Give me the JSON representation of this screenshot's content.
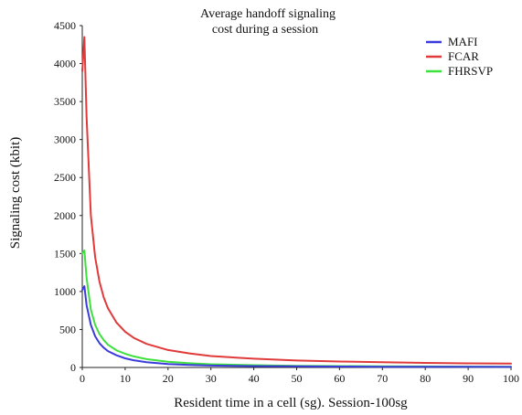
{
  "chart_data": {
    "type": "line",
    "title": [
      "Average handoff signaling",
      "cost during a session"
    ],
    "xlabel": "Resident time in a cell (sg). Session-100sg",
    "ylabel": "Signaling cost (kbit)",
    "xlim": [
      0,
      100
    ],
    "ylim": [
      0,
      4500
    ],
    "xticks": [
      0,
      10,
      20,
      30,
      40,
      50,
      60,
      70,
      80,
      90,
      100
    ],
    "yticks": [
      0,
      500,
      1000,
      1500,
      2000,
      2500,
      3000,
      3500,
      4000,
      4500
    ],
    "xtick_labels": [
      "0",
      "10",
      "20",
      "30",
      "40",
      "50",
      "60",
      "70",
      "80",
      "90",
      "100"
    ],
    "ytick_labels": [
      "0",
      "500",
      "1000",
      "1500",
      "2000",
      "2500",
      "3000",
      "3500",
      "4000",
      "4500"
    ],
    "grid": false,
    "legend_position": "top-right",
    "series": [
      {
        "name": "MAFI",
        "color": "#3b3bdc",
        "x": [
          0,
          0.5,
          1,
          2,
          3,
          4,
          5,
          6,
          8,
          10,
          12,
          15,
          20,
          25,
          30,
          40,
          50,
          60,
          70,
          80,
          90,
          100
        ],
        "y": [
          1020,
          1070,
          820,
          560,
          410,
          320,
          260,
          215,
          160,
          120,
          95,
          70,
          45,
          32,
          25,
          18,
          14,
          12,
          10,
          9,
          8,
          7
        ]
      },
      {
        "name": "FCAR",
        "color": "#e03a3a",
        "x": [
          0,
          0.5,
          1,
          2,
          3,
          4,
          5,
          6,
          8,
          10,
          12,
          15,
          20,
          25,
          30,
          40,
          50,
          60,
          70,
          80,
          90,
          100
        ],
        "y": [
          3900,
          4350,
          3300,
          2000,
          1450,
          1130,
          920,
          780,
          590,
          470,
          390,
          310,
          230,
          185,
          150,
          115,
          92,
          78,
          68,
          60,
          54,
          50
        ]
      },
      {
        "name": "FHRSVP",
        "color": "#3ee03e",
        "x": [
          0,
          0.5,
          1,
          2,
          3,
          4,
          5,
          6,
          8,
          10,
          12,
          15,
          20,
          25,
          30,
          40,
          50,
          60,
          70,
          80,
          90,
          100
        ],
        "y": [
          1500,
          1540,
          1180,
          760,
          560,
          440,
          360,
          300,
          225,
          180,
          145,
          110,
          75,
          55,
          42,
          30,
          22,
          18,
          15,
          13,
          11,
          10
        ]
      }
    ]
  }
}
